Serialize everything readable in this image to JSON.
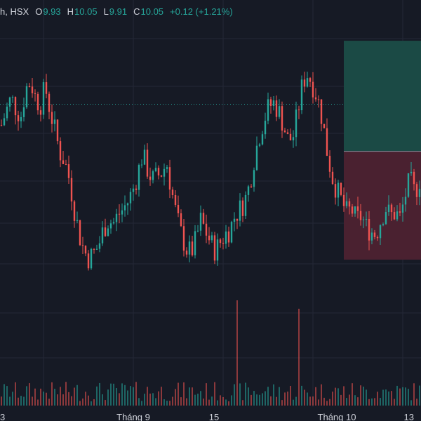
{
  "legend": {
    "symbol_fragment": "h, HSX",
    "open_label": "O",
    "open": "9.93",
    "high_label": "H",
    "high": "10.05",
    "low_label": "L",
    "low": "9.91",
    "close_label": "C",
    "close": "10.05",
    "change": "+0.12 (+1.21%)"
  },
  "x_ticks": [
    "3",
    "Tháng 9",
    "15",
    "Tháng 10",
    "13"
  ],
  "colors": {
    "background": "#161a25",
    "up": "#26a69a",
    "down": "#ef5350",
    "profit_zone": "#1b4a45",
    "loss_zone": "#4a2130",
    "grid": "#242836"
  },
  "chart_data": {
    "type": "candlestick",
    "title": "",
    "price_series": [
      10.55,
      10.68,
      10.8,
      10.7,
      10.63,
      10.88,
      10.95,
      10.8,
      10.73,
      10.9,
      10.68,
      10.5,
      10.3,
      10.22,
      10.05,
      9.78,
      9.55,
      9.4,
      9.33,
      9.38,
      9.45,
      9.6,
      9.68,
      9.65,
      9.73,
      9.78,
      9.85,
      9.95,
      10.1,
      10.28,
      10.15,
      10.05,
      10.08,
      10.12,
      10.2,
      9.95,
      9.72,
      9.55,
      9.42,
      9.38,
      9.5,
      9.68,
      9.58,
      9.48,
      9.4,
      9.48,
      9.55,
      9.6,
      9.72,
      9.78,
      9.85,
      10.0,
      10.25,
      10.45,
      10.6,
      10.72,
      10.75,
      10.68,
      10.55,
      10.4,
      10.45,
      10.68,
      10.95,
      11.02,
      10.92,
      10.8,
      10.6,
      10.3,
      10.08,
      9.95,
      9.85,
      9.75,
      9.78,
      9.68,
      9.72,
      9.62,
      9.58,
      9.55,
      9.68,
      9.8,
      9.72,
      9.75,
      9.7,
      9.9,
      10.05,
      9.93,
      10.05
    ],
    "zones": {
      "profit": {
        "from": 10.31,
        "to": 11.32
      },
      "loss": {
        "from": 9.32,
        "to": 10.31
      },
      "entry": 10.31
    },
    "dotted_level": 10.74,
    "volume_spikes": [
      {
        "at": 0.56,
        "relative": 1.0
      },
      {
        "at": 0.705,
        "relative": 0.92
      }
    ]
  }
}
